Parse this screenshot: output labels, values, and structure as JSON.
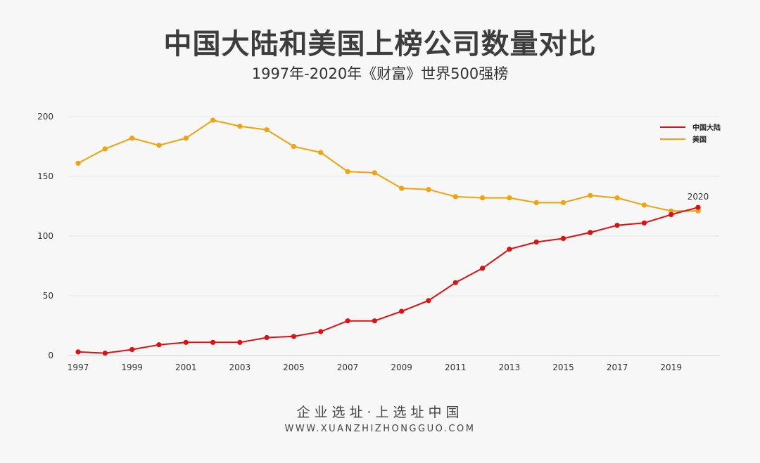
{
  "header": {
    "title": "中国大陆和美国上榜公司数量对比",
    "subtitle": "1997年-2020年《财富》世界500强榜"
  },
  "footer": {
    "slogan": "企业选址·上选址中国",
    "url": "WWW.XUANZHIZHONGGUO.COM"
  },
  "legend": [
    {
      "label": "中国大陆",
      "color": "#e01010"
    },
    {
      "label": "美国",
      "color": "#f0a30a"
    }
  ],
  "chart_data": {
    "type": "line",
    "title": "中国大陆和美国上榜公司数量对比",
    "subtitle": "1997年-2020年《财富》世界500强榜",
    "x": [
      1997,
      1998,
      1999,
      2000,
      2001,
      2002,
      2003,
      2004,
      2005,
      2006,
      2007,
      2008,
      2009,
      2010,
      2011,
      2012,
      2013,
      2014,
      2015,
      2016,
      2017,
      2018,
      2019,
      2020
    ],
    "x_tick_labels": [
      "1997",
      "1999",
      "2001",
      "2003",
      "2005",
      "2007",
      "2009",
      "2011",
      "2013",
      "2015",
      "2017",
      "2019"
    ],
    "x_tick_values": [
      1997,
      1999,
      2001,
      2003,
      2005,
      2007,
      2009,
      2011,
      2013,
      2015,
      2017,
      2019
    ],
    "y_ticks": [
      0,
      50,
      100,
      150,
      200
    ],
    "y_tick_labels": [
      "0",
      "50",
      "100",
      "150",
      "200"
    ],
    "ylim": [
      0,
      200
    ],
    "xlim": [
      1997,
      2020
    ],
    "grid": true,
    "legend_position": "top-right",
    "annotation": {
      "text": "2020",
      "x": 2020,
      "series": "中国大陆"
    },
    "series": [
      {
        "name": "中国大陆",
        "color": "#e01010",
        "values": [
          3,
          2,
          5,
          9,
          11,
          11,
          11,
          15,
          16,
          20,
          29,
          29,
          37,
          46,
          61,
          73,
          89,
          95,
          98,
          103,
          109,
          111,
          118,
          124
        ]
      },
      {
        "name": "美国",
        "color": "#f0a30a",
        "values": [
          161,
          173,
          182,
          176,
          182,
          197,
          192,
          189,
          175,
          170,
          154,
          153,
          140,
          139,
          133,
          132,
          132,
          128,
          128,
          134,
          132,
          126,
          121,
          121
        ]
      }
    ]
  }
}
